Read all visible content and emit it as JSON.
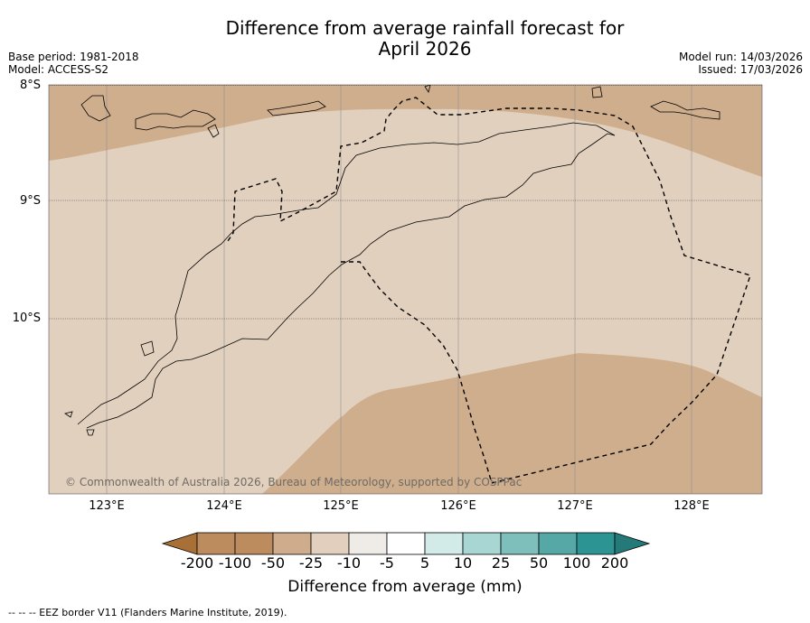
{
  "title": {
    "line1": "Difference from average rainfall forecast for",
    "line2": "April 2026"
  },
  "meta_left": {
    "base_period": "Base period: 1981-2018",
    "model": "Model: ACCESS-S2"
  },
  "meta_right": {
    "model_run": "Model run: 14/03/2026",
    "issued": "Issued: 17/03/2026"
  },
  "map": {
    "lat_labels": [
      "8°S",
      "9°S",
      "10°S"
    ],
    "lon_labels": [
      "123°E",
      "124°E",
      "125°E",
      "126°E",
      "127°E",
      "128°E"
    ],
    "copyright": "© Commonwealth of Australia 2026, Bureau of Meteorology, supported by COSPPac",
    "fill_colors": {
      "minus50_to_minus25": "#cfae8e",
      "minus25_to_minus10": "#e2d0be",
      "ocean_low": "#cfae8e"
    }
  },
  "colorbar": {
    "title": "Difference from average (mm)",
    "tick_labels": [
      "-200",
      "-100",
      "-50",
      "-25",
      "-10",
      "-5",
      "5",
      "10",
      "25",
      "50",
      "100",
      "200"
    ],
    "colors": [
      "#a87037",
      "#bc8c5e",
      "#cfad8c",
      "#e2cfbd",
      "#efebe7",
      "#ffffff",
      "#d3ebe8",
      "#a8d6d3",
      "#7ebfbb",
      "#56a8a6",
      "#2c9593",
      "#237a78"
    ]
  },
  "footer": {
    "legend": "--  --  -- EEZ border V11 (Flanders Marine Institute, 2019)."
  }
}
